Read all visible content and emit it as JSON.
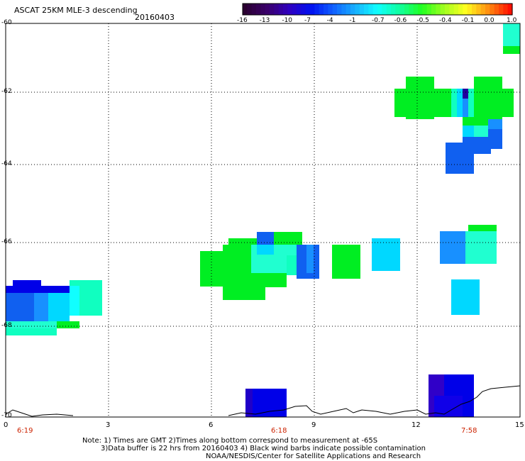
{
  "header": {
    "title": "ASCAT 25KM MLE-3 descending",
    "date": "20160403"
  },
  "colorbar": {
    "labels": [
      "-16",
      "-13",
      "-10",
      "-7",
      "-4",
      "-1",
      "-0.7",
      "-0.6",
      "-0.5",
      "-0.4",
      "-0.1",
      "0.0",
      "1.0"
    ],
    "colors": [
      "#2a0030",
      "#3a006a",
      "#3000c0",
      "#0010f0",
      "#1060ff",
      "#18b0ff",
      "#10ffff",
      "#10ffa0",
      "#20ff20",
      "#a0ff20",
      "#ffff20",
      "#ff9010",
      "#ff1000"
    ]
  },
  "axes": {
    "y_ticks": [
      "-60",
      "-62",
      "-64",
      "-66",
      "-68",
      "-70"
    ],
    "x_ticks": [
      "0",
      "3",
      "6",
      "9",
      "12",
      "15"
    ],
    "times": [
      "6:19",
      "6:18",
      "7:58"
    ]
  },
  "notes": {
    "line1": "Note: 1) Times are GMT 2)Times along bottom correspond to measurement at -65S",
    "line2": "3)Data buffer is 22 hrs from 20160403 4) Black wind barbs indicate possible contamination",
    "line3": "NOAA/NESDIS/Center for Satellite Applications and Research"
  },
  "colors": {
    "green": "#00ee22",
    "aqua": "#10ffc0",
    "cyan": "#00d8ff",
    "lightblue": "#1890ff",
    "blue": "#1060f0",
    "darkblue": "#0000e8",
    "indigo": "#3000c8",
    "deep": "#2000a0",
    "teal": "#20ffd0"
  }
}
